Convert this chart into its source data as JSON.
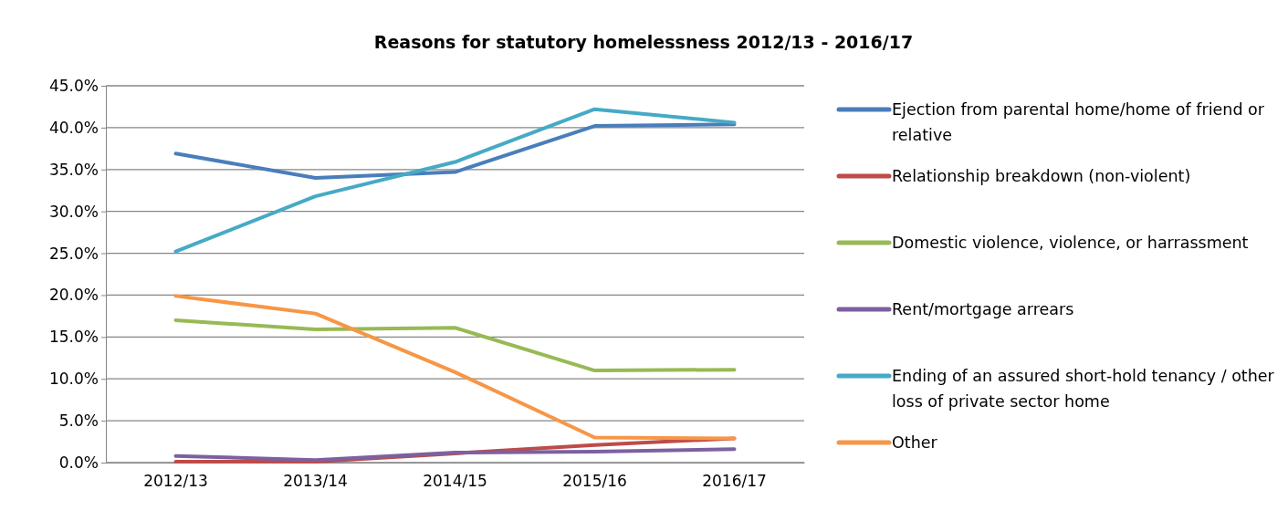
{
  "chart_data": {
    "type": "line",
    "title": "Reasons for statutory homelessness 2012/13 - 2016/17",
    "categories": [
      "2012/13",
      "2013/14",
      "2014/15",
      "2015/16",
      "2016/17"
    ],
    "series": [
      {
        "name": "Ejection from parental home/home of friend or relative",
        "color": "#4a7ebb",
        "values": [
          36.9,
          34.0,
          34.7,
          40.2,
          40.4
        ]
      },
      {
        "name": "Relationship breakdown (non-violent)",
        "color": "#be4b48",
        "values": [
          0.1,
          0.1,
          1.1,
          2.1,
          2.9
        ]
      },
      {
        "name": "Domestic violence, violence, or harrassment",
        "color": "#98b954",
        "values": [
          17.0,
          15.9,
          16.1,
          11.0,
          11.1
        ]
      },
      {
        "name": "Rent/mortgage arrears",
        "color": "#7d60a0",
        "values": [
          0.8,
          0.3,
          1.2,
          1.3,
          1.6
        ]
      },
      {
        "name": "Ending of an assured short-hold tenancy / other loss of private sector home",
        "color": "#46aac5",
        "values": [
          25.2,
          31.8,
          35.9,
          42.2,
          40.6
        ]
      },
      {
        "name": "Other",
        "color": "#f79646",
        "values": [
          19.9,
          17.8,
          10.8,
          3.0,
          2.9
        ]
      }
    ],
    "ylim": [
      0,
      45
    ],
    "yticks": [
      {
        "value": 0,
        "label": "0.0%"
      },
      {
        "value": 5,
        "label": "5.0%"
      },
      {
        "value": 10,
        "label": "10.0%"
      },
      {
        "value": 15,
        "label": "15.0%"
      },
      {
        "value": 20,
        "label": "20.0%"
      },
      {
        "value": 25,
        "label": "25.0%"
      },
      {
        "value": 30,
        "label": "30.0%"
      },
      {
        "value": 35,
        "label": "35.0%"
      },
      {
        "value": 40,
        "label": "40.0%"
      },
      {
        "value": 45,
        "label": "45.0%"
      }
    ],
    "grid": "y",
    "legend": "right",
    "marker": "none",
    "line_style": "solid"
  }
}
